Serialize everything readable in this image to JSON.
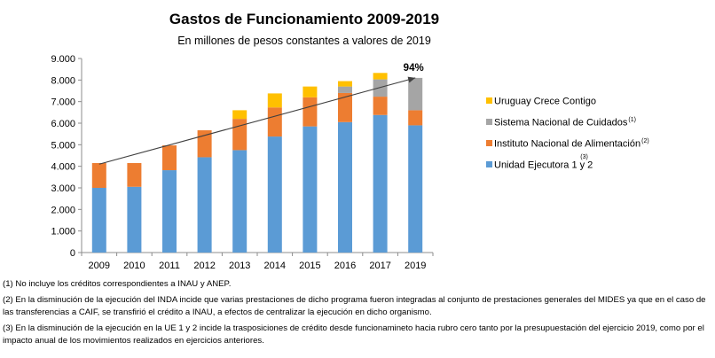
{
  "chart_data": {
    "type": "bar",
    "stacked": true,
    "title": "Gastos de Funcionamiento 2009-2019",
    "subtitle": "En millones de pesos constantes a valores de 2019",
    "xlabel": "",
    "ylabel": "",
    "ylim": [
      0,
      9000
    ],
    "yticks": [
      "0",
      "1.000",
      "2.000",
      "3.000",
      "4.000",
      "5.000",
      "6.000",
      "7.000",
      "8.000",
      "9.000"
    ],
    "yticks_values": [
      0,
      1000,
      2000,
      3000,
      4000,
      5000,
      6000,
      7000,
      8000,
      9000
    ],
    "categories": [
      "2009",
      "2010",
      "2011",
      "2012",
      "2013",
      "2014",
      "2015",
      "2016",
      "2017",
      "2019"
    ],
    "series": [
      {
        "name": "Unidad Ejecutora 1 y 2",
        "note": "(3)",
        "color": "#5B9BD5",
        "values": [
          3000,
          3050,
          3820,
          4420,
          4750,
          5380,
          5850,
          6050,
          6380,
          5900
        ]
      },
      {
        "name": "Instituto Nacional de Alimentación",
        "note": "(2)",
        "color": "#ED7D31",
        "values": [
          1150,
          1100,
          1150,
          1250,
          1450,
          1350,
          1350,
          1350,
          850,
          700
        ]
      },
      {
        "name": "Sistema Nacional de Cuidados",
        "note": "(1)",
        "color": "#A5A5A5",
        "values": [
          0,
          0,
          0,
          0,
          0,
          0,
          0,
          300,
          800,
          1500
        ]
      },
      {
        "name": "Uruguay Crece Contigo",
        "note": "",
        "color": "#FFC000",
        "values": [
          0,
          0,
          0,
          0,
          400,
          650,
          500,
          250,
          300,
          0
        ]
      }
    ],
    "trendline": {
      "start": 4100,
      "end": 8100,
      "color": "#404040"
    },
    "annotation": "94%",
    "legend_position": "right",
    "grid": false
  },
  "footnotes": [
    "(1) No incluye los créditos correspondientes a INAU y ANEP.",
    "(2) En la disminución de la ejecución del INDA incide que varias prestaciones de dicho programa fueron integradas al conjunto de prestaciones generales del MIDES ya que en el caso de las transferencias a CAIF, se transfirió el crédito a INAU, a efectos de centralizar la ejecución en dicho organismo.",
    "(3) En la disminución de la ejecución en la UE 1 y 2 incide la trasposiciones de crédito desde funcionamineto hacia rubro cero tanto por la presupuestación del ejercicio 2019, como por el impacto anual de los movimientos realizados en ejercicios anteriores."
  ]
}
